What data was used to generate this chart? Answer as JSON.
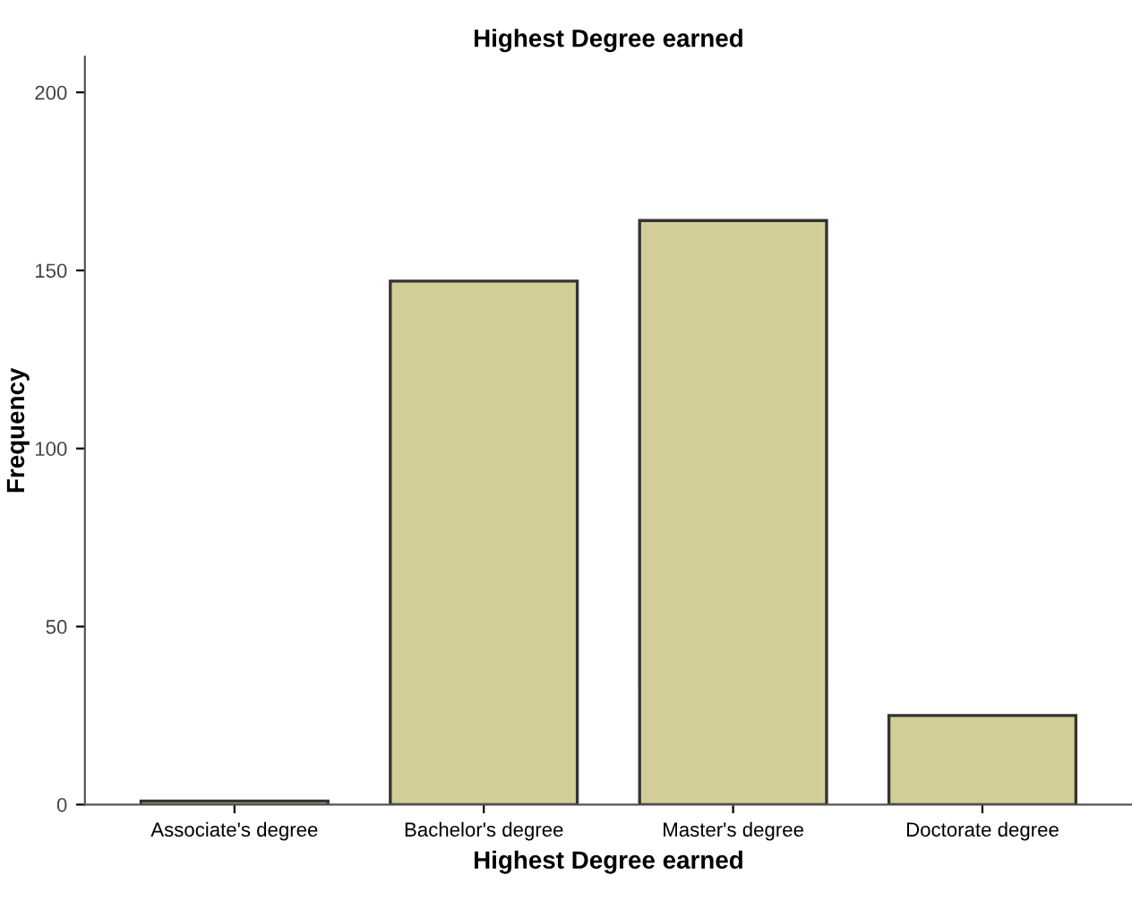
{
  "chart_data": {
    "type": "bar",
    "title": "Highest Degree earned",
    "xlabel": "Highest Degree earned",
    "ylabel": "Frequency",
    "categories": [
      "Associate's degree",
      "Bachelor's degree",
      "Master's degree",
      "Doctorate degree"
    ],
    "values": [
      1,
      147,
      164,
      25
    ],
    "color": "#d3ce98",
    "ylim": [
      0,
      210
    ],
    "yticks": [
      0,
      50,
      100,
      150,
      200
    ],
    "grid": false,
    "legend": false
  }
}
